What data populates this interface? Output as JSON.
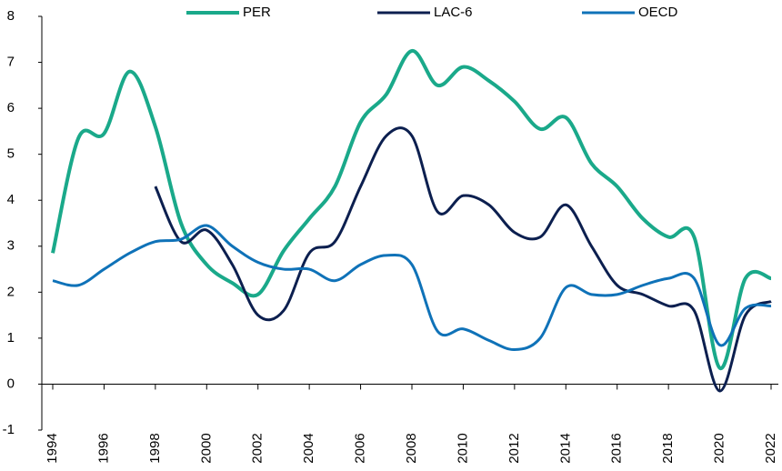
{
  "chart_data": {
    "type": "line",
    "x": [
      1994,
      1995,
      1996,
      1997,
      1998,
      1999,
      2000,
      2001,
      2002,
      2003,
      2004,
      2005,
      2006,
      2007,
      2008,
      2009,
      2010,
      2011,
      2012,
      2013,
      2014,
      2015,
      2016,
      2017,
      2018,
      2019,
      2020,
      2021,
      2022
    ],
    "series": [
      {
        "name": "PER",
        "color": "#1aa98a",
        "values": [
          2.85,
          5.35,
          5.45,
          6.8,
          5.6,
          3.5,
          2.6,
          2.2,
          1.95,
          2.9,
          3.6,
          4.3,
          5.7,
          6.3,
          7.25,
          6.5,
          6.9,
          6.6,
          6.15,
          5.55,
          5.8,
          4.8,
          4.3,
          3.6,
          3.2,
          3.2,
          0.35,
          2.3,
          2.3
        ]
      },
      {
        "name": "LAC-6",
        "color": "#0c1f4f",
        "values": [
          null,
          null,
          null,
          null,
          4.3,
          3.1,
          3.35,
          2.6,
          1.5,
          1.6,
          2.85,
          3.1,
          4.3,
          5.4,
          5.4,
          3.75,
          4.1,
          3.9,
          3.3,
          3.2,
          3.9,
          3.0,
          2.15,
          1.95,
          1.7,
          1.6,
          -0.15,
          1.5,
          1.8
        ]
      },
      {
        "name": "OECD",
        "color": "#0f72b8",
        "values": [
          2.25,
          2.15,
          2.5,
          2.85,
          3.1,
          3.15,
          3.45,
          3.0,
          2.65,
          2.5,
          2.5,
          2.25,
          2.6,
          2.8,
          2.6,
          1.15,
          1.2,
          0.95,
          0.75,
          1.0,
          2.1,
          1.95,
          1.95,
          2.15,
          2.3,
          2.3,
          0.85,
          1.65,
          1.7
        ]
      }
    ],
    "xlim": [
      1994,
      2022
    ],
    "xticks": [
      1994,
      1996,
      1998,
      2000,
      2002,
      2004,
      2006,
      2008,
      2010,
      2012,
      2014,
      2016,
      2018,
      2020,
      2022
    ],
    "ylim": [
      -1,
      8
    ],
    "yticks": [
      -1,
      0,
      1,
      2,
      3,
      4,
      5,
      6,
      7,
      8
    ],
    "legend": "top"
  }
}
